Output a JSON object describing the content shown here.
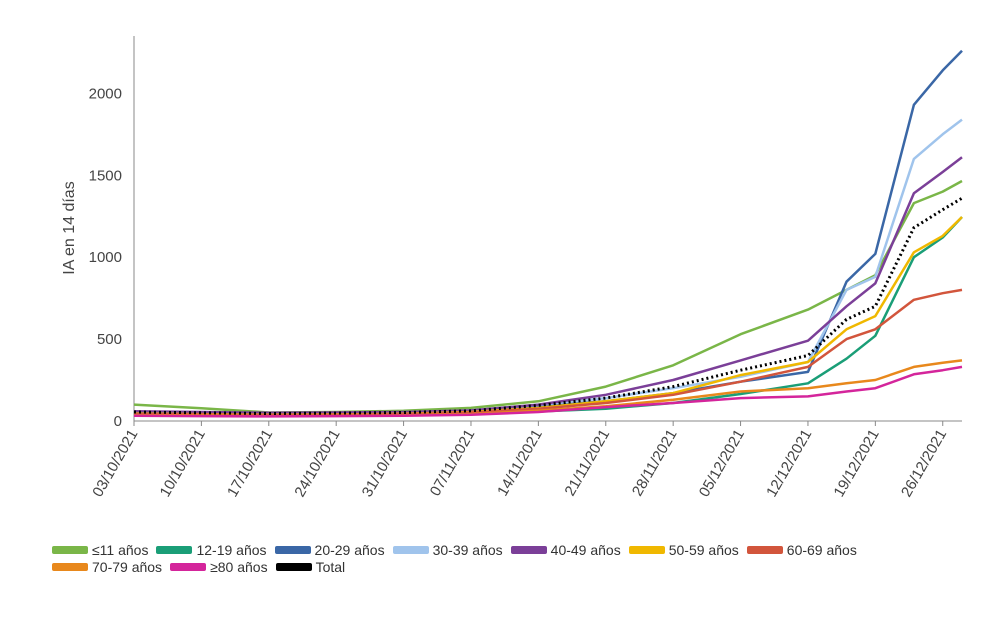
{
  "chart_data": {
    "type": "line",
    "ylabel": "IA en 14 días",
    "xlabel": "",
    "ylim": [
      0,
      2350
    ],
    "yticks": [
      0,
      500,
      1000,
      1500,
      2000
    ],
    "x_ticks": [
      "03/10/2021",
      "10/10/2021",
      "17/10/2021",
      "24/10/2021",
      "31/10/2021",
      "07/11/2021",
      "14/11/2021",
      "21/11/2021",
      "28/11/2021",
      "05/12/2021",
      "12/12/2021",
      "19/12/2021",
      "26/12/2021"
    ],
    "x": [
      "03/10/2021",
      "10/10/2021",
      "17/10/2021",
      "24/10/2021",
      "31/10/2021",
      "07/11/2021",
      "14/11/2021",
      "21/11/2021",
      "28/11/2021",
      "05/12/2021",
      "12/12/2021",
      "16/12/2021",
      "19/12/2021",
      "23/12/2021",
      "26/12/2021",
      "28/12/2021"
    ],
    "legend_position": "bottom",
    "series": [
      {
        "name": "≤11 años",
        "color": "#7ab648",
        "values": [
          100,
          78,
          52,
          55,
          62,
          80,
          120,
          210,
          340,
          530,
          680,
          800,
          890,
          1330,
          1400,
          1465
        ]
      },
      {
        "name": "12-19 años",
        "color": "#1a9e77",
        "values": [
          38,
          38,
          36,
          38,
          38,
          45,
          58,
          75,
          110,
          165,
          230,
          380,
          520,
          1000,
          1120,
          1245
        ]
      },
      {
        "name": "20-29 años",
        "color": "#3a67a6",
        "values": [
          50,
          48,
          44,
          46,
          50,
          60,
          90,
          120,
          170,
          240,
          300,
          850,
          1020,
          1930,
          2140,
          2260
        ]
      },
      {
        "name": "30-39 años",
        "color": "#a0c4ec",
        "values": [
          52,
          50,
          46,
          48,
          52,
          65,
          98,
          140,
          200,
          270,
          360,
          800,
          880,
          1600,
          1750,
          1840
        ]
      },
      {
        "name": "40-49 años",
        "color": "#7b3f98",
        "values": [
          60,
          55,
          50,
          52,
          55,
          65,
          100,
          160,
          250,
          370,
          490,
          700,
          840,
          1390,
          1520,
          1610
        ]
      },
      {
        "name": "50-59 años",
        "color": "#f0b800",
        "values": [
          45,
          42,
          38,
          40,
          44,
          55,
          80,
          120,
          170,
          280,
          360,
          560,
          640,
          1030,
          1130,
          1245
        ]
      },
      {
        "name": "60-69 años",
        "color": "#d2553c",
        "values": [
          42,
          40,
          36,
          38,
          42,
          52,
          75,
          110,
          160,
          240,
          330,
          500,
          560,
          740,
          780,
          800
        ]
      },
      {
        "name": "70-79 años",
        "color": "#e8881c",
        "values": [
          36,
          34,
          30,
          32,
          34,
          42,
          62,
          90,
          130,
          180,
          200,
          230,
          250,
          330,
          355,
          370
        ]
      },
      {
        "name": "≥80 años",
        "color": "#d4259b",
        "values": [
          32,
          30,
          28,
          30,
          32,
          38,
          55,
          85,
          110,
          140,
          150,
          180,
          200,
          285,
          310,
          330
        ]
      },
      {
        "name": "Total",
        "color": "#000000",
        "dotted": true,
        "values": [
          55,
          50,
          46,
          48,
          52,
          62,
          95,
          140,
          210,
          310,
          400,
          620,
          700,
          1180,
          1290,
          1360
        ]
      }
    ]
  }
}
